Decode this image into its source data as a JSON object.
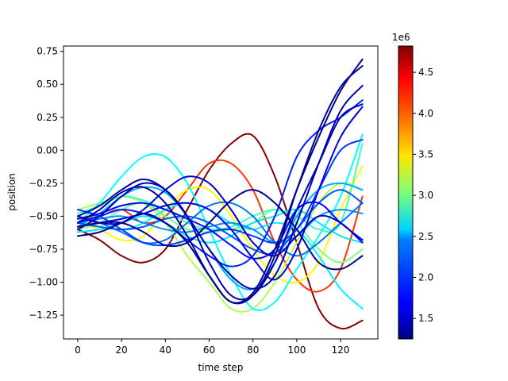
{
  "chart_data": [
    {
      "type": "line",
      "xlabel": "time step",
      "ylabel": "position",
      "xlim": [
        -6.5,
        137
      ],
      "ylim": [
        -1.43,
        0.79
      ],
      "xticks": [
        0,
        20,
        40,
        60,
        80,
        100,
        120
      ],
      "xtick_labels": [
        "0",
        "20",
        "40",
        "60",
        "80",
        "100",
        "120"
      ],
      "yticks": [
        0.75,
        0.5,
        0.25,
        0.0,
        -0.25,
        -0.5,
        -0.75,
        -1.0,
        -1.25
      ],
      "ytick_labels": [
        "0.75",
        "0.50",
        "0.25",
        "0.00",
        "−0.25",
        "−0.50",
        "−0.75",
        "−1.00",
        "−1.25"
      ],
      "grid": false,
      "colormap": "jet",
      "series": [
        {
          "color_value": 4.8,
          "x": [
            0,
            10,
            20,
            30,
            40,
            50,
            60,
            70,
            80,
            90,
            100,
            110,
            120,
            130
          ],
          "y": [
            -0.6,
            -0.68,
            -0.8,
            -0.85,
            -0.75,
            -0.45,
            -0.15,
            0.05,
            0.11,
            -0.2,
            -0.7,
            -1.2,
            -1.35,
            -1.29
          ]
        },
        {
          "color_value": 4.2,
          "x": [
            0,
            10,
            20,
            30,
            40,
            50,
            60,
            70,
            80,
            90,
            100,
            110,
            120,
            130
          ],
          "y": [
            -0.52,
            -0.5,
            -0.45,
            -0.55,
            -0.5,
            -0.3,
            -0.1,
            -0.1,
            -0.3,
            -0.7,
            -0.98,
            -1.07,
            -0.9,
            -0.35
          ]
        },
        {
          "color_value": 3.5,
          "x": [
            0,
            10,
            20,
            30,
            40,
            50,
            60,
            70,
            80,
            90,
            100,
            110,
            120,
            130
          ],
          "y": [
            -0.55,
            -0.6,
            -0.68,
            -0.65,
            -0.45,
            -0.3,
            -0.3,
            -0.5,
            -0.75,
            -0.95,
            -1.0,
            -0.85,
            -0.45,
            -0.12
          ]
        },
        {
          "color_value": 3.2,
          "x": [
            0,
            10,
            20,
            30,
            40,
            50,
            60,
            70,
            80,
            90,
            100,
            110,
            120,
            130
          ],
          "y": [
            -0.45,
            -0.4,
            -0.35,
            -0.4,
            -0.55,
            -0.8,
            -1.0,
            -1.2,
            -1.2,
            -1.0,
            -0.7,
            -0.4,
            -0.25,
            -0.3
          ]
        },
        {
          "color_value": 3.0,
          "x": [
            0,
            10,
            20,
            30,
            40,
            50,
            60,
            70,
            80,
            90,
            100,
            110,
            120,
            130
          ],
          "y": [
            -0.6,
            -0.55,
            -0.45,
            -0.4,
            -0.5,
            -0.6,
            -0.62,
            -0.6,
            -0.55,
            -0.45,
            -0.55,
            -0.75,
            -0.85,
            -0.75
          ]
        },
        {
          "color_value": 2.8,
          "x": [
            0,
            10,
            20,
            30,
            40,
            50,
            60,
            70,
            80,
            90,
            100,
            110,
            120,
            130
          ],
          "y": [
            -0.48,
            -0.42,
            -0.35,
            -0.38,
            -0.45,
            -0.55,
            -0.6,
            -0.58,
            -0.5,
            -0.45,
            -0.5,
            -0.6,
            -0.55,
            0.05
          ]
        },
        {
          "color_value": 2.6,
          "x": [
            0,
            10,
            20,
            30,
            40,
            50,
            60,
            70,
            80,
            90,
            100,
            110,
            120,
            130
          ],
          "y": [
            -0.55,
            -0.4,
            -0.2,
            -0.05,
            -0.05,
            -0.25,
            -0.6,
            -0.95,
            -1.2,
            -1.15,
            -0.9,
            -0.65,
            -0.35,
            0.12
          ]
        },
        {
          "color_value": 2.55,
          "x": [
            0,
            10,
            20,
            30,
            40,
            50,
            60,
            70,
            80,
            90,
            100,
            110,
            120,
            130
          ],
          "y": [
            -0.5,
            -0.55,
            -0.6,
            -0.55,
            -0.45,
            -0.4,
            -0.45,
            -0.55,
            -0.6,
            -0.55,
            -0.6,
            -0.8,
            -1.05,
            -1.2
          ]
        },
        {
          "color_value": 2.5,
          "x": [
            0,
            10,
            20,
            30,
            40,
            50,
            60,
            70,
            80,
            90,
            100,
            110,
            120,
            130
          ],
          "y": [
            -0.62,
            -0.6,
            -0.55,
            -0.5,
            -0.55,
            -0.65,
            -0.7,
            -0.65,
            -0.55,
            -0.5,
            -0.45,
            -0.55,
            -0.65,
            -0.7
          ]
        },
        {
          "color_value": 2.3,
          "x": [
            0,
            10,
            20,
            30,
            40,
            50,
            60,
            70,
            80,
            90,
            100,
            110,
            120,
            130
          ],
          "y": [
            -0.58,
            -0.48,
            -0.35,
            -0.28,
            -0.32,
            -0.5,
            -0.75,
            -0.98,
            -1.05,
            -0.85,
            -0.5,
            -0.3,
            -0.25,
            -0.3
          ]
        },
        {
          "color_value": 2.2,
          "x": [
            0,
            10,
            20,
            30,
            40,
            50,
            60,
            70,
            80,
            90,
            100,
            110,
            120,
            130
          ],
          "y": [
            -0.55,
            -0.52,
            -0.5,
            -0.55,
            -0.6,
            -0.62,
            -0.58,
            -0.55,
            -0.6,
            -0.7,
            -0.65,
            -0.5,
            -0.45,
            -0.48
          ]
        },
        {
          "color_value": 2.1,
          "x": [
            0,
            10,
            20,
            30,
            40,
            50,
            60,
            70,
            80,
            90,
            100,
            110,
            120,
            130
          ],
          "y": [
            -0.5,
            -0.55,
            -0.62,
            -0.7,
            -0.68,
            -0.55,
            -0.42,
            -0.4,
            -0.5,
            -0.7,
            -0.8,
            -0.7,
            -0.55,
            -0.4
          ]
        },
        {
          "color_value": 2.0,
          "x": [
            0,
            10,
            20,
            30,
            40,
            50,
            60,
            70,
            80,
            90,
            100,
            110,
            120,
            130
          ],
          "y": [
            -0.55,
            -0.58,
            -0.6,
            -0.58,
            -0.52,
            -0.5,
            -0.55,
            -0.65,
            -0.75,
            -0.78,
            -0.6,
            -0.4,
            -0.3,
            -0.4
          ]
        },
        {
          "color_value": 1.9,
          "x": [
            0,
            10,
            20,
            30,
            40,
            50,
            60,
            70,
            80,
            90,
            100,
            110,
            120,
            130
          ],
          "y": [
            -0.45,
            -0.5,
            -0.6,
            -0.7,
            -0.72,
            -0.68,
            -0.62,
            -0.6,
            -0.65,
            -0.7,
            -0.6,
            -0.3,
            0.0,
            0.08
          ]
        },
        {
          "color_value": 1.8,
          "x": [
            0,
            10,
            20,
            30,
            40,
            50,
            60,
            70,
            80,
            90,
            100,
            110,
            120,
            130
          ],
          "y": [
            -0.55,
            -0.5,
            -0.45,
            -0.48,
            -0.55,
            -0.68,
            -0.8,
            -0.88,
            -0.8,
            -0.5,
            -0.05,
            0.15,
            0.25,
            0.38
          ]
        },
        {
          "color_value": 1.7,
          "x": [
            0,
            10,
            20,
            30,
            40,
            50,
            60,
            70,
            80,
            90,
            100,
            110,
            120,
            130
          ],
          "y": [
            -0.52,
            -0.48,
            -0.42,
            -0.4,
            -0.45,
            -0.52,
            -0.6,
            -0.72,
            -0.82,
            -0.75,
            -0.45,
            -0.4,
            -0.55,
            -0.68
          ]
        },
        {
          "color_value": 1.6,
          "x": [
            0,
            10,
            20,
            30,
            40,
            50,
            60,
            70,
            80,
            90,
            100,
            110,
            120,
            130
          ],
          "y": [
            -0.58,
            -0.55,
            -0.52,
            -0.48,
            -0.42,
            -0.4,
            -0.45,
            -0.6,
            -0.82,
            -0.98,
            -0.75,
            -0.3,
            0.1,
            0.33
          ]
        },
        {
          "color_value": 1.5,
          "x": [
            0,
            10,
            20,
            30,
            40,
            50,
            60,
            70,
            80,
            90,
            100,
            110,
            120,
            130
          ],
          "y": [
            -0.5,
            -0.55,
            -0.55,
            -0.45,
            -0.3,
            -0.2,
            -0.25,
            -0.45,
            -0.7,
            -0.8,
            -0.65,
            -0.5,
            -0.55,
            -0.7
          ]
        },
        {
          "color_value": 1.45,
          "x": [
            0,
            10,
            20,
            30,
            40,
            50,
            60,
            70,
            80,
            90,
            100,
            110,
            120,
            130
          ],
          "y": [
            -0.6,
            -0.5,
            -0.35,
            -0.25,
            -0.3,
            -0.5,
            -0.85,
            -1.1,
            -1.1,
            -0.85,
            -0.45,
            -0.1,
            0.25,
            0.35
          ]
        },
        {
          "color_value": 1.4,
          "x": [
            0,
            10,
            20,
            30,
            40,
            50,
            60,
            70,
            80,
            90,
            100,
            110,
            120,
            130
          ],
          "y": [
            -0.5,
            -0.42,
            -0.3,
            -0.22,
            -0.3,
            -0.5,
            -0.75,
            -0.95,
            -1.05,
            -0.95,
            -0.55,
            -0.1,
            0.3,
            0.49
          ]
        },
        {
          "color_value": 1.35,
          "x": [
            0,
            10,
            20,
            30,
            40,
            50,
            60,
            70,
            80,
            90,
            100,
            110,
            120,
            130
          ],
          "y": [
            -0.55,
            -0.45,
            -0.32,
            -0.28,
            -0.4,
            -0.65,
            -0.95,
            -1.15,
            -1.1,
            -0.8,
            -0.3,
            0.15,
            0.48,
            0.64
          ]
        },
        {
          "color_value": 1.3,
          "x": [
            0,
            10,
            20,
            30,
            40,
            50,
            60,
            70,
            80,
            90,
            100,
            110,
            120,
            130
          ],
          "y": [
            -0.65,
            -0.62,
            -0.55,
            -0.48,
            -0.55,
            -0.7,
            -0.95,
            -1.15,
            -1.08,
            -0.75,
            -0.3,
            0.1,
            0.45,
            0.69
          ]
        },
        {
          "color_value": 1.28,
          "x": [
            0,
            10,
            20,
            30,
            40,
            50,
            60,
            70,
            80,
            90,
            100,
            110,
            120,
            130
          ],
          "y": [
            -0.58,
            -0.55,
            -0.55,
            -0.62,
            -0.72,
            -0.7,
            -0.55,
            -0.38,
            -0.3,
            -0.4,
            -0.6,
            -0.85,
            -0.9,
            -0.8
          ]
        }
      ]
    },
    {
      "type": "heatmap",
      "role": "colorbar",
      "colormap": "jet",
      "range": [
        1.25,
        4.82
      ],
      "ticks": [
        1.5,
        2.0,
        2.5,
        3.0,
        3.5,
        4.0,
        4.5
      ],
      "tick_labels": [
        "1.5",
        "2.0",
        "2.5",
        "3.0",
        "3.5",
        "4.0",
        "4.5"
      ],
      "offset_label": "1e6"
    }
  ]
}
